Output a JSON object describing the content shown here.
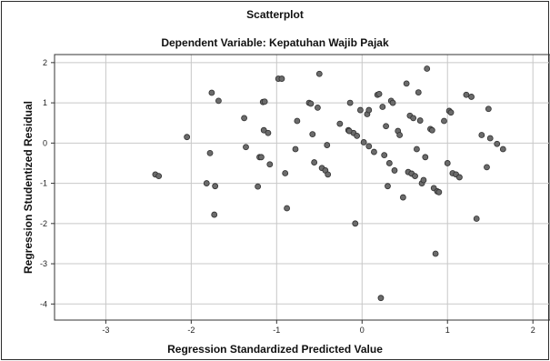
{
  "chart_data": {
    "type": "scatter",
    "title": "Scatterplot",
    "subtitle": "Dependent Variable: Kepatuhan Wajib Pajak",
    "xlabel": "Regression Standardized Predicted Value",
    "ylabel": "Regression Studentized Residual",
    "xlim": [
      -3.6,
      2.2
    ],
    "ylim": [
      -4.4,
      2.2
    ],
    "xticks": [
      "-3",
      "-2",
      "-1",
      "0",
      "1",
      "2"
    ],
    "yticks": [
      "2",
      "1",
      "0",
      "-1",
      "-2",
      "-3",
      "-4"
    ],
    "grid": true,
    "colors": {
      "point_fill": "#6b6b6b",
      "point_stroke": "#303030",
      "grid": "#c8c8c8",
      "axis": "#333333"
    },
    "points": [
      [
        -2.42,
        -0.78
      ],
      [
        -2.38,
        -0.82
      ],
      [
        -2.05,
        0.15
      ],
      [
        -1.82,
        -1.0
      ],
      [
        -1.78,
        -0.25
      ],
      [
        -1.76,
        1.25
      ],
      [
        -1.73,
        -1.78
      ],
      [
        -1.72,
        -1.07
      ],
      [
        -1.68,
        1.05
      ],
      [
        -1.38,
        0.62
      ],
      [
        -1.36,
        -0.1
      ],
      [
        -1.22,
        -1.08
      ],
      [
        -1.2,
        -0.35
      ],
      [
        -1.18,
        -0.35
      ],
      [
        -1.16,
        1.02
      ],
      [
        -1.15,
        0.32
      ],
      [
        -1.14,
        1.03
      ],
      [
        -1.1,
        0.25
      ],
      [
        -1.08,
        -0.53
      ],
      [
        -0.98,
        1.6
      ],
      [
        -0.94,
        1.6
      ],
      [
        -0.9,
        -0.75
      ],
      [
        -0.88,
        -1.62
      ],
      [
        -0.78,
        -0.15
      ],
      [
        -0.76,
        0.55
      ],
      [
        -0.62,
        1.0
      ],
      [
        -0.6,
        0.98
      ],
      [
        -0.58,
        0.22
      ],
      [
        -0.56,
        -0.48
      ],
      [
        -0.52,
        0.88
      ],
      [
        -0.5,
        1.72
      ],
      [
        -0.47,
        -0.62
      ],
      [
        -0.43,
        -0.68
      ],
      [
        -0.41,
        -0.05
      ],
      [
        -0.4,
        -0.78
      ],
      [
        -0.26,
        0.48
      ],
      [
        -0.16,
        0.32
      ],
      [
        -0.14,
        1.0
      ],
      [
        -0.1,
        0.25
      ],
      [
        -0.08,
        -2.0
      ],
      [
        -0.06,
        0.18
      ],
      [
        -0.02,
        0.82
      ],
      [
        0.02,
        0.02
      ],
      [
        0.06,
        0.72
      ],
      [
        0.08,
        -0.08
      ],
      [
        0.14,
        -0.22
      ],
      [
        0.18,
        1.2
      ],
      [
        0.2,
        1.22
      ],
      [
        0.22,
        -3.85
      ],
      [
        0.24,
        0.9
      ],
      [
        0.26,
        -0.3
      ],
      [
        0.28,
        0.42
      ],
      [
        0.3,
        -1.07
      ],
      [
        0.32,
        -0.5
      ],
      [
        0.34,
        1.05
      ],
      [
        0.36,
        1.0
      ],
      [
        0.38,
        -0.68
      ],
      [
        0.42,
        0.3
      ],
      [
        0.44,
        0.2
      ],
      [
        0.48,
        -1.35
      ],
      [
        0.52,
        1.48
      ],
      [
        0.54,
        -0.72
      ],
      [
        0.56,
        0.68
      ],
      [
        0.58,
        -0.76
      ],
      [
        0.6,
        0.62
      ],
      [
        0.62,
        -0.82
      ],
      [
        0.64,
        -0.15
      ],
      [
        0.66,
        1.26
      ],
      [
        0.68,
        0.56
      ],
      [
        0.7,
        -1.0
      ],
      [
        0.72,
        -0.92
      ],
      [
        0.74,
        -0.35
      ],
      [
        0.76,
        1.85
      ],
      [
        0.8,
        0.35
      ],
      [
        0.82,
        0.32
      ],
      [
        0.84,
        -1.12
      ],
      [
        0.86,
        -2.75
      ],
      [
        0.88,
        -1.2
      ],
      [
        0.9,
        -1.22
      ],
      [
        0.96,
        0.55
      ],
      [
        1.0,
        -0.5
      ],
      [
        1.02,
        0.8
      ],
      [
        1.04,
        0.76
      ],
      [
        1.06,
        -0.75
      ],
      [
        1.1,
        -0.78
      ],
      [
        1.14,
        -0.85
      ],
      [
        1.22,
        1.2
      ],
      [
        1.28,
        1.15
      ],
      [
        1.34,
        -1.88
      ],
      [
        1.4,
        0.2
      ],
      [
        1.46,
        -0.6
      ],
      [
        1.48,
        0.85
      ],
      [
        1.5,
        0.12
      ],
      [
        1.58,
        -0.02
      ],
      [
        1.65,
        -0.15
      ],
      [
        0.08,
        0.82
      ],
      [
        -0.15,
        0.3
      ]
    ]
  }
}
